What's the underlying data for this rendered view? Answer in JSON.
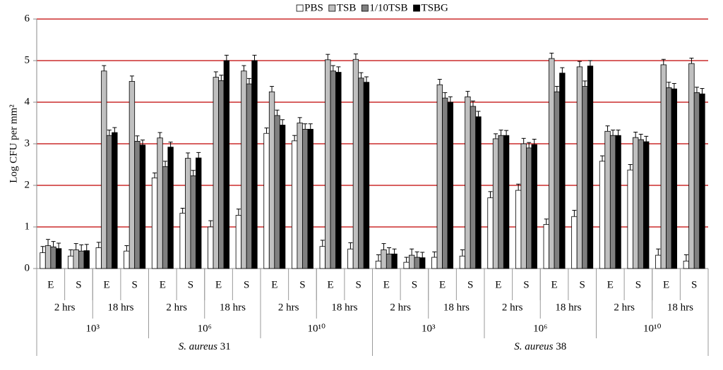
{
  "chart_data": {
    "type": "bar",
    "y_label": "Log CFU per mm²",
    "ylim": [
      0,
      6
    ],
    "yticks": [
      0,
      1,
      2,
      3,
      4,
      5,
      6
    ],
    "grid": true,
    "grid_color": "#c00000",
    "legend": "top",
    "categories": [
      "E",
      "S",
      "E",
      "S",
      "E",
      "S",
      "E",
      "S",
      "E",
      "S",
      "E",
      "S",
      "E",
      "S",
      "E",
      "S",
      "E",
      "S",
      "E",
      "S",
      "E",
      "S",
      "E",
      "S"
    ],
    "time_labels": [
      "2 hrs",
      "18 hrs",
      "2 hrs",
      "18 hrs",
      "2 hrs",
      "18 hrs",
      "2 hrs",
      "18 hrs",
      "2 hrs",
      "18 hrs",
      "2 hrs",
      "18 hrs"
    ],
    "dose_labels": [
      "10³",
      "10⁶",
      "10¹⁰",
      "10³",
      "10⁶",
      "10¹⁰"
    ],
    "strains": [
      {
        "species": "S. aureus",
        "number": "31"
      },
      {
        "species": "S. aureus",
        "number": "38"
      }
    ],
    "series": [
      {
        "name": "PBS",
        "color": "#ffffff",
        "values": [
          0.38,
          0.3,
          0.5,
          0.42,
          2.18,
          1.33,
          1.0,
          1.28,
          3.25,
          3.07,
          0.53,
          0.47,
          0.18,
          0.15,
          0.27,
          0.3,
          1.7,
          1.88,
          1.06,
          1.25,
          2.58,
          2.37,
          0.32,
          0.18
        ],
        "errors": [
          0.15,
          0.15,
          0.13,
          0.13,
          0.12,
          0.12,
          0.15,
          0.15,
          0.13,
          0.13,
          0.15,
          0.15,
          0.15,
          0.12,
          0.13,
          0.15,
          0.15,
          0.15,
          0.13,
          0.15,
          0.13,
          0.13,
          0.15,
          0.15
        ]
      },
      {
        "name": "TSB",
        "color": "#c0c0c0",
        "values": [
          0.55,
          0.45,
          4.75,
          4.5,
          3.14,
          2.65,
          4.6,
          4.75,
          4.25,
          3.5,
          5.02,
          5.03,
          0.45,
          0.32,
          4.42,
          4.13,
          3.12,
          3.0,
          5.05,
          4.85,
          3.3,
          3.15,
          4.9,
          4.93
        ],
        "errors": [
          0.15,
          0.15,
          0.13,
          0.13,
          0.13,
          0.13,
          0.13,
          0.13,
          0.13,
          0.13,
          0.13,
          0.13,
          0.15,
          0.15,
          0.13,
          0.13,
          0.12,
          0.13,
          0.13,
          0.13,
          0.13,
          0.13,
          0.13,
          0.13
        ]
      },
      {
        "name": "1/10TSB",
        "color": "#808080",
        "values": [
          0.52,
          0.42,
          3.2,
          3.06,
          2.45,
          2.23,
          4.52,
          4.44,
          3.68,
          3.35,
          4.75,
          4.58,
          0.35,
          0.27,
          4.1,
          3.9,
          3.2,
          2.9,
          4.25,
          4.38,
          3.2,
          3.1,
          4.35,
          4.23
        ],
        "errors": [
          0.13,
          0.15,
          0.13,
          0.13,
          0.13,
          0.13,
          0.13,
          0.13,
          0.13,
          0.13,
          0.13,
          0.13,
          0.15,
          0.13,
          0.13,
          0.13,
          0.13,
          0.13,
          0.13,
          0.13,
          0.13,
          0.13,
          0.13,
          0.13
        ]
      },
      {
        "name": "TSBG",
        "color": "#000000",
        "values": [
          0.48,
          0.43,
          3.27,
          2.97,
          2.92,
          2.66,
          5.0,
          5.0,
          3.45,
          3.35,
          4.72,
          4.48,
          0.35,
          0.26,
          4.0,
          3.65,
          3.2,
          2.98,
          4.7,
          4.87,
          3.2,
          3.05,
          4.32,
          4.2
        ],
        "errors": [
          0.13,
          0.15,
          0.12,
          0.12,
          0.12,
          0.13,
          0.13,
          0.13,
          0.13,
          0.13,
          0.13,
          0.13,
          0.12,
          0.13,
          0.13,
          0.13,
          0.12,
          0.13,
          0.13,
          0.13,
          0.13,
          0.13,
          0.13,
          0.13
        ]
      }
    ]
  }
}
